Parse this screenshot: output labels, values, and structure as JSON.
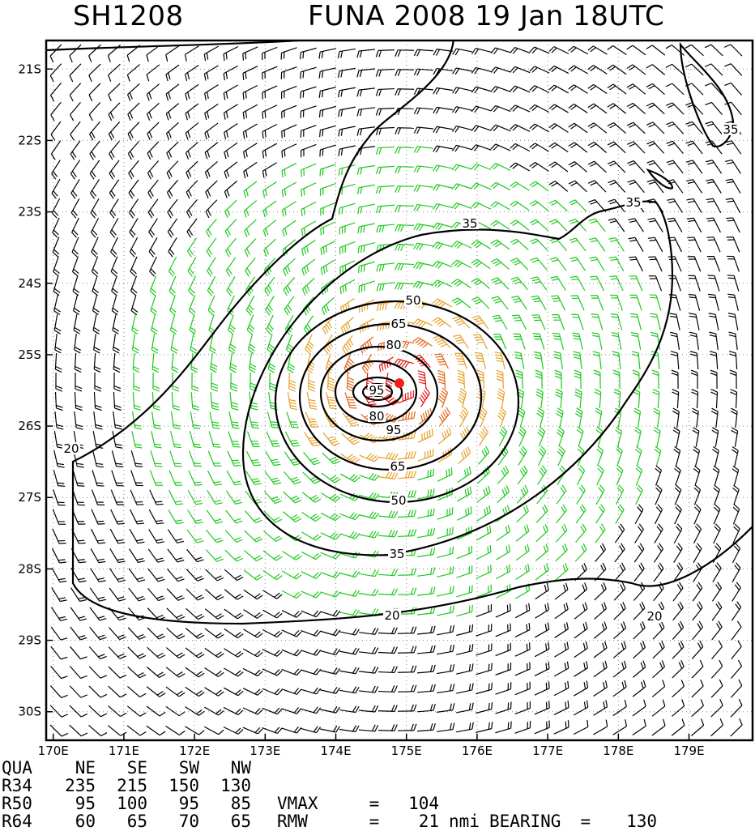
{
  "header": {
    "storm_id": "SH1208",
    "title": "FUNA 2008 19 Jan 18UTC"
  },
  "map": {
    "lon_range": [
      169.9,
      179.9
    ],
    "lat_range": [
      -20.6,
      -30.4
    ],
    "lon_ticks": [
      "170E",
      "171E",
      "172E",
      "173E",
      "174E",
      "175E",
      "176E",
      "177E",
      "178E",
      "179E"
    ],
    "lat_ticks": [
      "21S",
      "22S",
      "23S",
      "24S",
      "25S",
      "26S",
      "27S",
      "28S",
      "29S",
      "30S"
    ],
    "center": {
      "lon": 174.9,
      "lat": -25.4
    },
    "contour_labels": [
      "20",
      "20",
      "20",
      "35",
      "35",
      "35",
      "35",
      "50",
      "50",
      "65",
      "65",
      "80",
      "80",
      "95",
      "95"
    ],
    "barb_colors": {
      "lt20": "#000000",
      "g20": "#1ec81e",
      "g35": "#e6a028",
      "g50": "#e06414",
      "g65": "#e61414"
    }
  },
  "table": {
    "header": [
      "QUA",
      "NE",
      "SE",
      "SW",
      "NW"
    ],
    "rows": [
      {
        "label": "R34",
        "values": [
          "235",
          "215",
          "150",
          "130"
        ]
      },
      {
        "label": "R50",
        "values": [
          "95",
          "100",
          "95",
          "85"
        ]
      },
      {
        "label": "R64",
        "values": [
          "60",
          "65",
          "70",
          "65"
        ]
      }
    ],
    "vmax_label": "VMAX",
    "vmax_eq": "=",
    "vmax_value": "104",
    "rmw_label": "RMW",
    "rmw_eq": "=",
    "rmw_value": "21",
    "rmw_unit": "nmi",
    "bearing_label": "BEARING",
    "bearing_eq": "=",
    "bearing_value": "130"
  }
}
